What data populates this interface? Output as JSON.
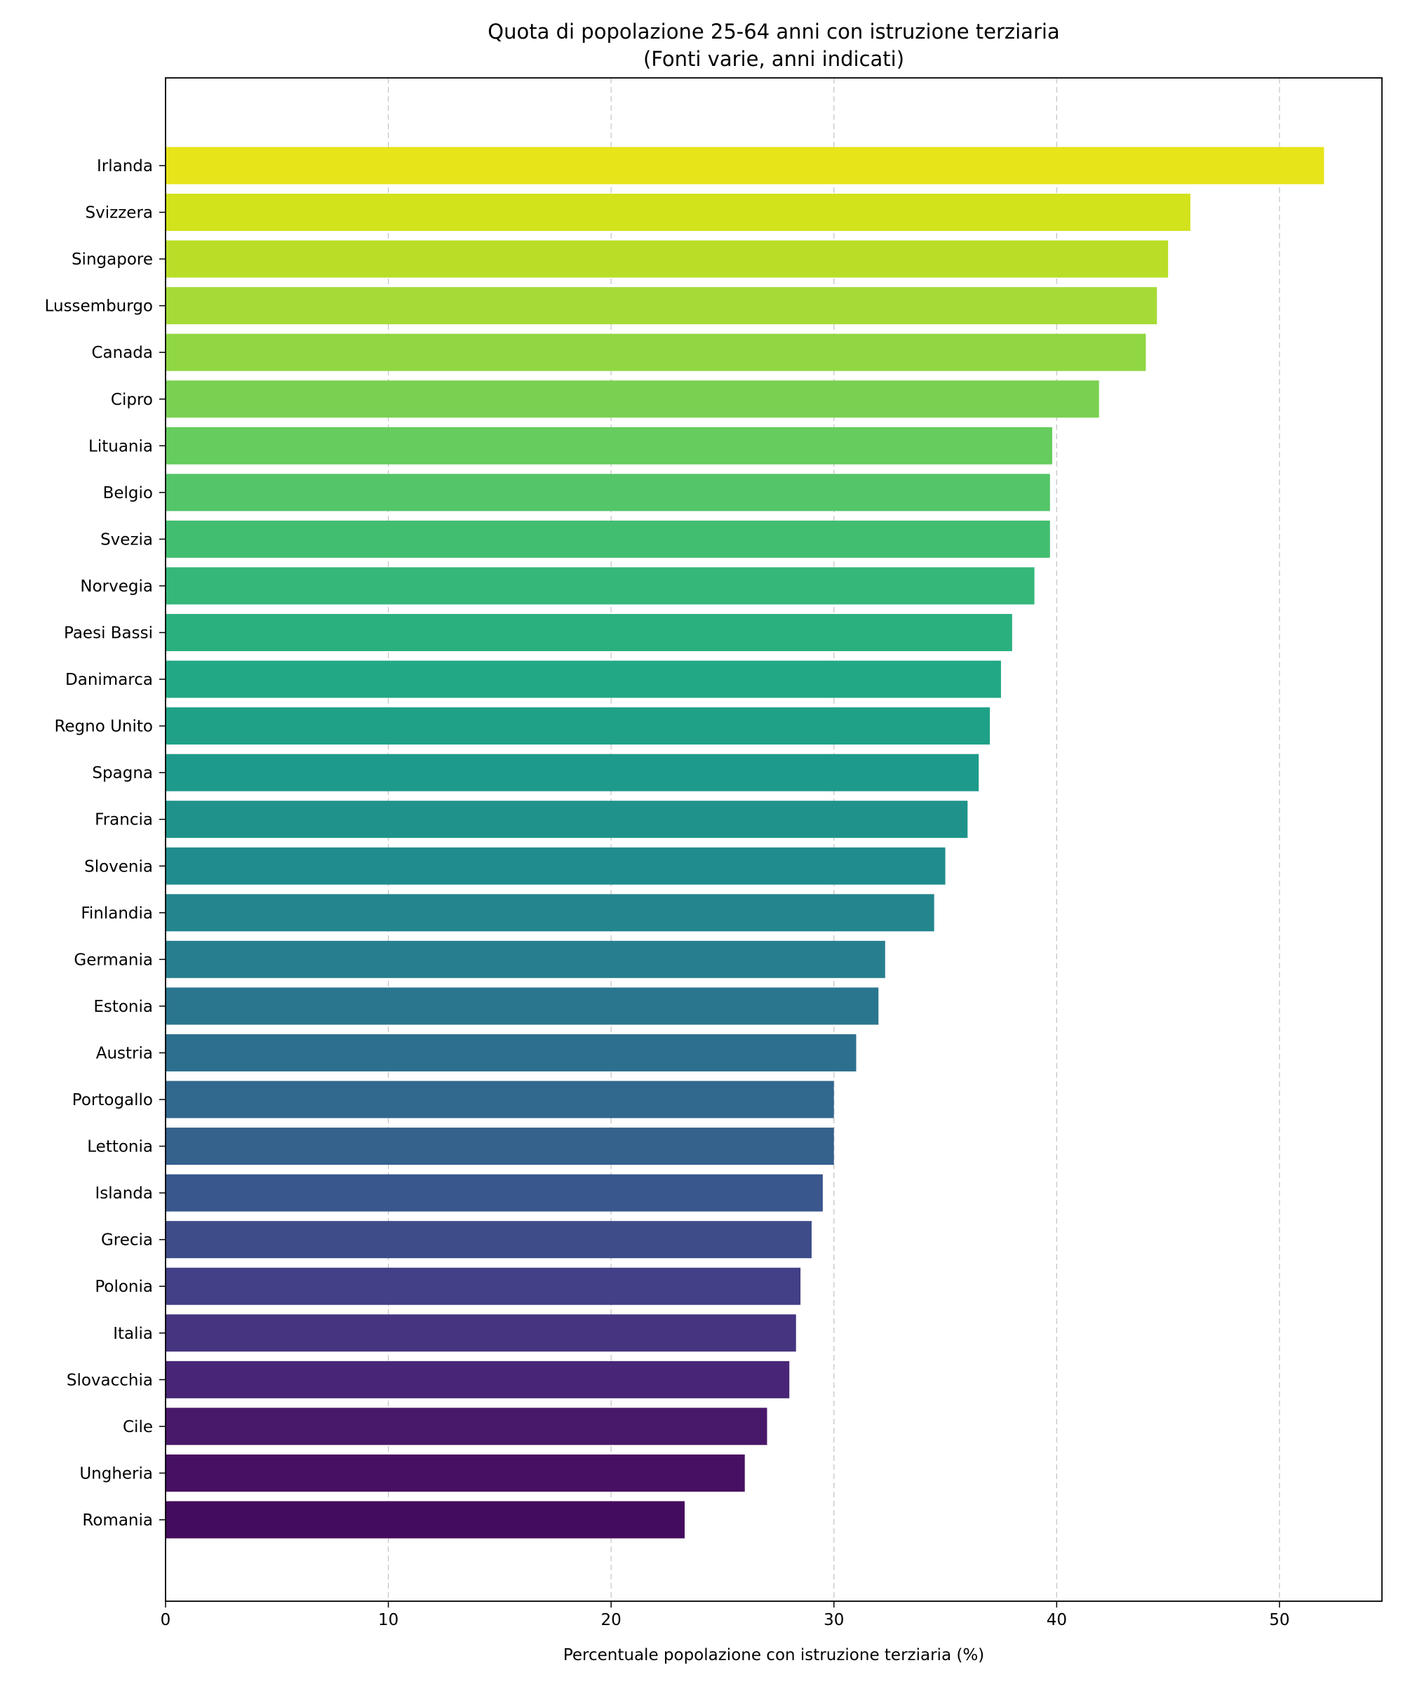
{
  "chart_data": {
    "type": "bar",
    "orientation": "horizontal",
    "title_lines": [
      "Quota di popolazione 25-64 anni con istruzione terziaria",
      "(Fonti varie, anni indicati)"
    ],
    "xlabel": "Percentuale popolazione con istruzione terziaria (%)",
    "ylabel": "",
    "xlim": [
      0,
      54.6
    ],
    "xticks": [
      0,
      10,
      20,
      30,
      40,
      50
    ],
    "grid": "x, dashed",
    "colormap": "viridis",
    "categories": [
      "Irlanda",
      "Svizzera",
      "Singapore",
      "Lussemburgo",
      "Canada",
      "Cipro",
      "Lituania",
      "Belgio",
      "Svezia",
      "Norvegia",
      "Paesi Bassi",
      "Danimarca",
      "Regno Unito",
      "Spagna",
      "Francia",
      "Slovenia",
      "Finlandia",
      "Germania",
      "Estonia",
      "Austria",
      "Portogallo",
      "Lettonia",
      "Islanda",
      "Grecia",
      "Polonia",
      "Italia",
      "Slovacchia",
      "Cile",
      "Ungheria",
      "Romania"
    ],
    "values": [
      52.0,
      46.0,
      45.0,
      44.5,
      44.0,
      41.9,
      39.8,
      39.7,
      39.7,
      39.0,
      38.0,
      37.5,
      37.0,
      36.5,
      36.0,
      35.0,
      34.5,
      32.3,
      32.0,
      31.0,
      30.0,
      30.0,
      29.5,
      29.0,
      28.5,
      28.3,
      28.0,
      27.0,
      26.0,
      23.3
    ],
    "colors": [
      "#e7e419",
      "#d2e21b",
      "#bade28",
      "#a5db36",
      "#90d743",
      "#7ad151",
      "#66cc5d",
      "#54c568",
      "#42be71",
      "#35b779",
      "#2ab07f",
      "#22a884",
      "#1fa187",
      "#1e9a8a",
      "#1f938b",
      "#218c8d",
      "#23858e",
      "#277e8e",
      "#2a768e",
      "#2d6f8e",
      "#31688e",
      "#35618d",
      "#39578c",
      "#3e4c8a",
      "#424086",
      "#463480",
      "#482576",
      "#48186a",
      "#471063",
      "#440c5e"
    ]
  }
}
